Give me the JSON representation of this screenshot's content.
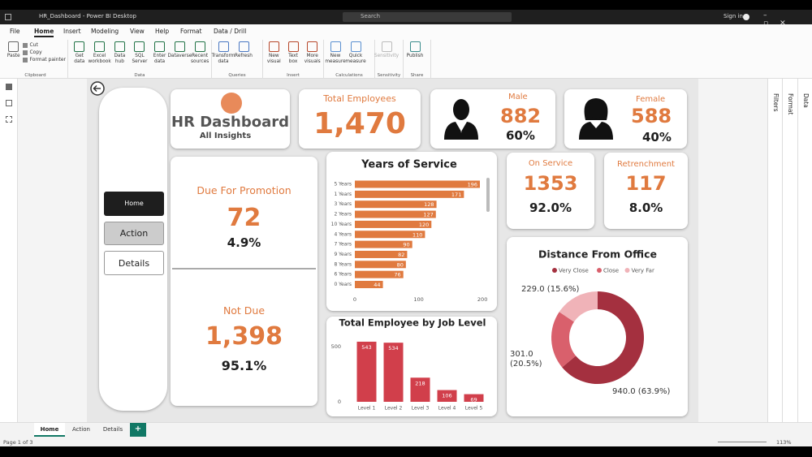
{
  "window": {
    "title": "HR_Dashboard - Power BI Desktop",
    "search": "Search",
    "sign_in": "Sign in"
  },
  "ribbon": {
    "tabs": [
      "File",
      "Home",
      "Insert",
      "Modeling",
      "View",
      "Help",
      "Format",
      "Data / Drill"
    ],
    "groups": [
      {
        "name": "Clipboard",
        "buttons": [
          "Paste",
          "Cut",
          "Copy",
          "Format painter"
        ]
      },
      {
        "name": "Data",
        "buttons": [
          "Get data",
          "Excel workbook",
          "Data hub",
          "SQL Server",
          "Enter data",
          "Dataverse",
          "Recent sources"
        ]
      },
      {
        "name": "Queries",
        "buttons": [
          "Transform data",
          "Refresh"
        ]
      },
      {
        "name": "Insert",
        "buttons": [
          "New visual",
          "Text box",
          "More visuals"
        ]
      },
      {
        "name": "Calculations",
        "buttons": [
          "New measure",
          "Quick measure"
        ]
      },
      {
        "name": "Sensitivity",
        "buttons": [
          "Sensitivity"
        ]
      },
      {
        "name": "Share",
        "buttons": [
          "Publish"
        ]
      }
    ]
  },
  "panes": [
    "Filters",
    "Format",
    "Data"
  ],
  "dashboard": {
    "header": {
      "title": "HR Dashboard",
      "subtitle": "All Insights"
    },
    "nav": [
      "Home",
      "Action",
      "Details"
    ],
    "total": {
      "label": "Total Employees",
      "value": "1,470"
    },
    "male": {
      "label": "Male",
      "value": "882",
      "share": "60%"
    },
    "female": {
      "label": "Female",
      "value": "588",
      "share": "40%"
    },
    "promotion": {
      "label": "Due For Promotion",
      "value": "72",
      "share": "4.9%"
    },
    "not_due": {
      "label": "Not Due",
      "value": "1,398",
      "share": "95.1%"
    },
    "on_service": {
      "label": "On Service",
      "value": "1353",
      "share": "92.0%"
    },
    "retrenchment": {
      "label": "Retrenchment",
      "value": "117",
      "share": "8.0%"
    }
  },
  "chart_data": [
    {
      "type": "bar",
      "orientation": "horizontal",
      "title": "Years of Service",
      "categories": [
        "5 Years",
        "1 Years",
        "3 Years",
        "2 Years",
        "10 Years",
        "4 Years",
        "7 Years",
        "9 Years",
        "8 Years",
        "6 Years",
        "0 Years"
      ],
      "values": [
        196,
        171,
        128,
        127,
        120,
        110,
        90,
        82,
        80,
        76,
        44
      ],
      "color": "#e07a3f",
      "xlim": [
        0,
        210
      ],
      "xticks": [
        0,
        100,
        200
      ]
    },
    {
      "type": "column",
      "title": "Total Employee by Job Level",
      "categories": [
        "Level 1",
        "Level 2",
        "Level 3",
        "Level 4",
        "Level 5"
      ],
      "values": [
        543,
        534,
        218,
        106,
        69
      ],
      "color": "#d13f4b",
      "ylim": [
        0,
        550
      ],
      "yticks": [
        0,
        500
      ]
    },
    {
      "type": "donut",
      "title": "Distance From Office",
      "categories": [
        "Very Close",
        "Close",
        "Very Far"
      ],
      "values": [
        940,
        301,
        229
      ],
      "value_labels": [
        "940.0 (63.9%)",
        "301.0 (20.5%)",
        "229.0 (15.6%)"
      ],
      "colors": [
        "#a4303f",
        "#d9606c",
        "#f0b3b8"
      ]
    }
  ],
  "page_tabs": [
    "Home",
    "Action",
    "Details",
    "+"
  ],
  "status": {
    "page": "Page 1 of 3",
    "zoom": "113%"
  }
}
